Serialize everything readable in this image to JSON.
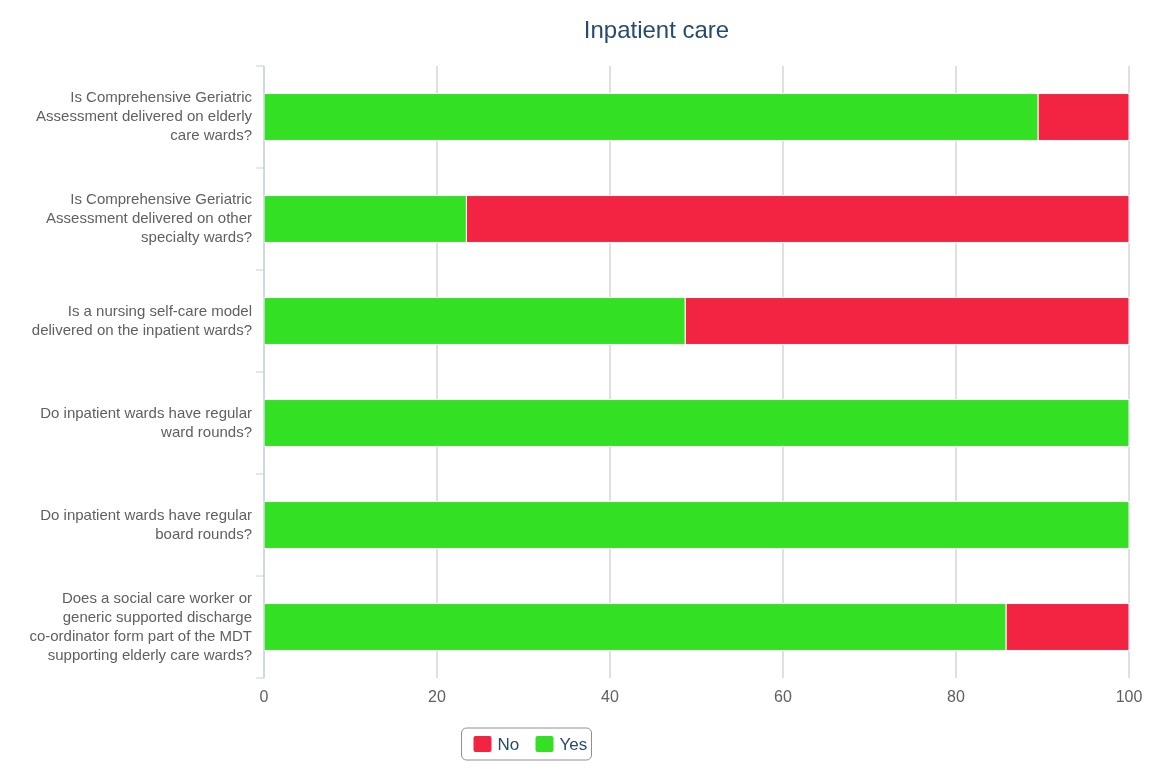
{
  "chart_data": {
    "type": "bar",
    "title": "Inpatient care",
    "orientation": "horizontal",
    "stacked": true,
    "categories": [
      "Is Comprehensive Geriatric Assessment delivered on elderly care wards?",
      "Is Comprehensive Geriatric Assessment delivered on other specialty wards?",
      "Is a nursing self-care model delivered on the inpatient wards?",
      "Do inpatient wards have regular ward rounds?",
      "Do inpatient wards have regular board rounds?",
      "Does a social care worker or generic supported discharge co-ordinator form part of the MDT supporting elderly care wards?"
    ],
    "series": [
      {
        "name": "Yes",
        "color": "#33e024",
        "values": [
          89.5,
          23.4,
          48.7,
          100,
          100,
          85.8
        ]
      },
      {
        "name": "No",
        "color": "#f32442",
        "values": [
          10.5,
          76.6,
          51.3,
          0,
          0,
          14.2
        ]
      }
    ],
    "xlim": [
      0,
      100
    ],
    "xticks": [
      0,
      20,
      40,
      60,
      80,
      100
    ],
    "grid": "x",
    "legend": "bottom"
  }
}
